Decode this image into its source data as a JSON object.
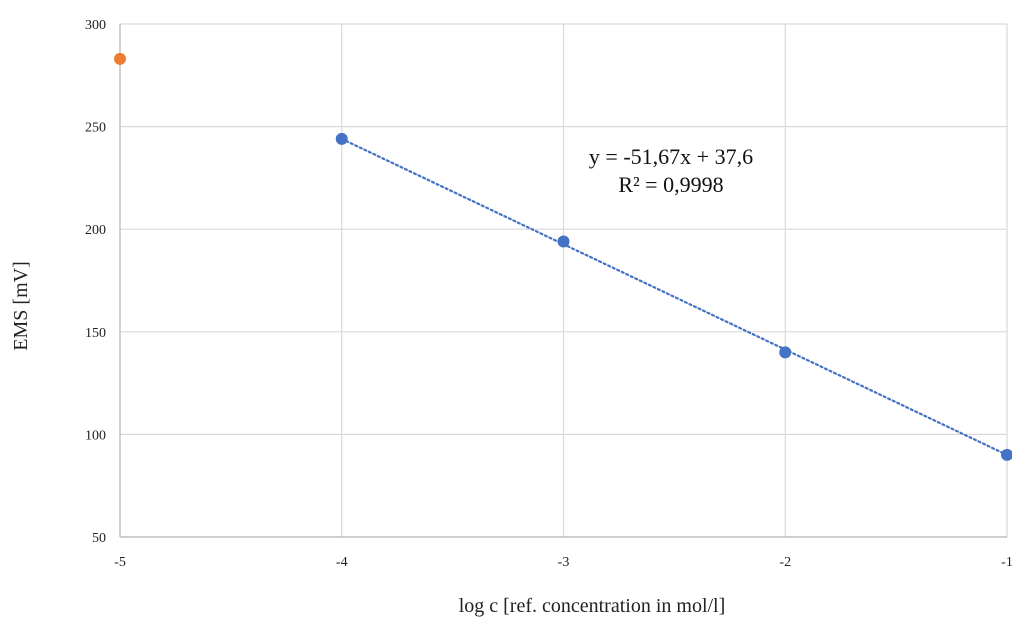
{
  "chart_data": {
    "type": "scatter",
    "title": "",
    "xlabel": "log c [ref. concentration in mol/l]",
    "ylabel": "EMS [mV]",
    "xlim": [
      -5,
      -1
    ],
    "ylim": [
      50,
      300
    ],
    "xticks": [
      -5,
      -4,
      -3,
      -2,
      -1
    ],
    "yticks": [
      50,
      100,
      150,
      200,
      250,
      300
    ],
    "xtick_labels": [
      "-5",
      "-4",
      "-3",
      "-2",
      "-1"
    ],
    "ytick_labels": [
      "50",
      "100",
      "150",
      "200",
      "250",
      "300"
    ],
    "grid": true,
    "legend": false,
    "series": [
      {
        "color": "#4472c4",
        "points": [
          {
            "x": -4,
            "y": 244
          },
          {
            "x": -3,
            "y": 194
          },
          {
            "x": -2,
            "y": 140
          },
          {
            "x": -1,
            "y": 90
          }
        ],
        "trendline": {
          "type": "linear",
          "style": "dotted",
          "color": "#4472c4",
          "equation": "y = -51,67x + 37,6",
          "r_squared": "R² = 0,9998"
        }
      },
      {
        "color": "#ed7d31",
        "points": [
          {
            "x": -5,
            "y": 283
          }
        ]
      }
    ]
  }
}
